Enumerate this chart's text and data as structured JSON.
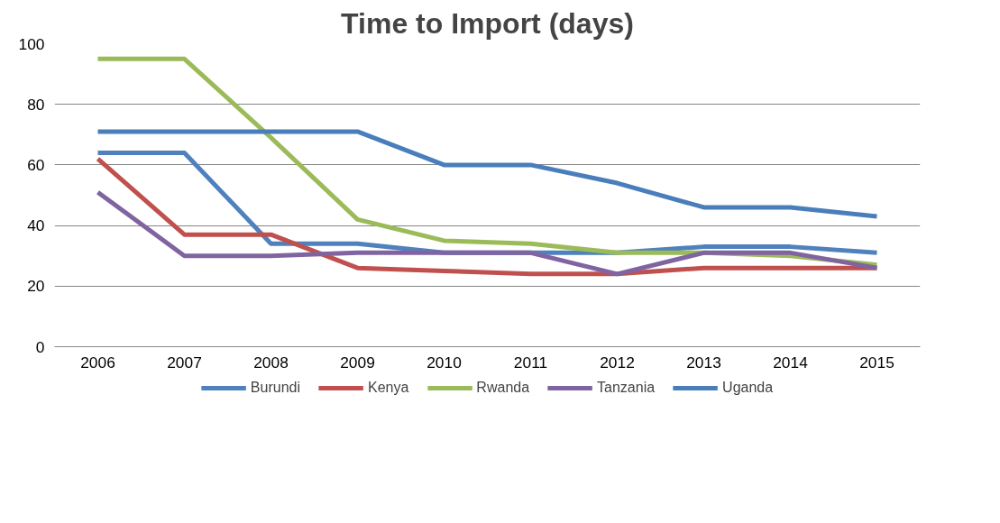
{
  "chart_data": {
    "type": "line",
    "title": "Time to Import (days)",
    "categories": [
      "2006",
      "2007",
      "2008",
      "2009",
      "2010",
      "2011",
      "2012",
      "2013",
      "2014",
      "2015"
    ],
    "series": [
      {
        "name": "Burundi",
        "color": "#4f81bd",
        "values": [
          64,
          64,
          34,
          34,
          31,
          31,
          31,
          33,
          33,
          31
        ]
      },
      {
        "name": "Kenya",
        "color": "#c0504d",
        "values": [
          62,
          37,
          37,
          26,
          25,
          24,
          24,
          26,
          26,
          26
        ]
      },
      {
        "name": "Rwanda",
        "color": "#9bbb59",
        "values": [
          95,
          95,
          69,
          42,
          35,
          34,
          31,
          31,
          30,
          27
        ]
      },
      {
        "name": "Tanzania",
        "color": "#8064a2",
        "values": [
          51,
          30,
          30,
          31,
          31,
          31,
          24,
          31,
          31,
          26
        ]
      },
      {
        "name": "Uganda",
        "color": "#4a7ebb",
        "values": [
          71,
          71,
          71,
          71,
          60,
          60,
          54,
          46,
          46,
          43
        ]
      }
    ],
    "ylim": [
      0,
      100
    ],
    "yticks": [
      0,
      20,
      40,
      60,
      80,
      100
    ],
    "grid": "y",
    "legend": "bottom",
    "line_style": "solid",
    "marker": "none"
  }
}
